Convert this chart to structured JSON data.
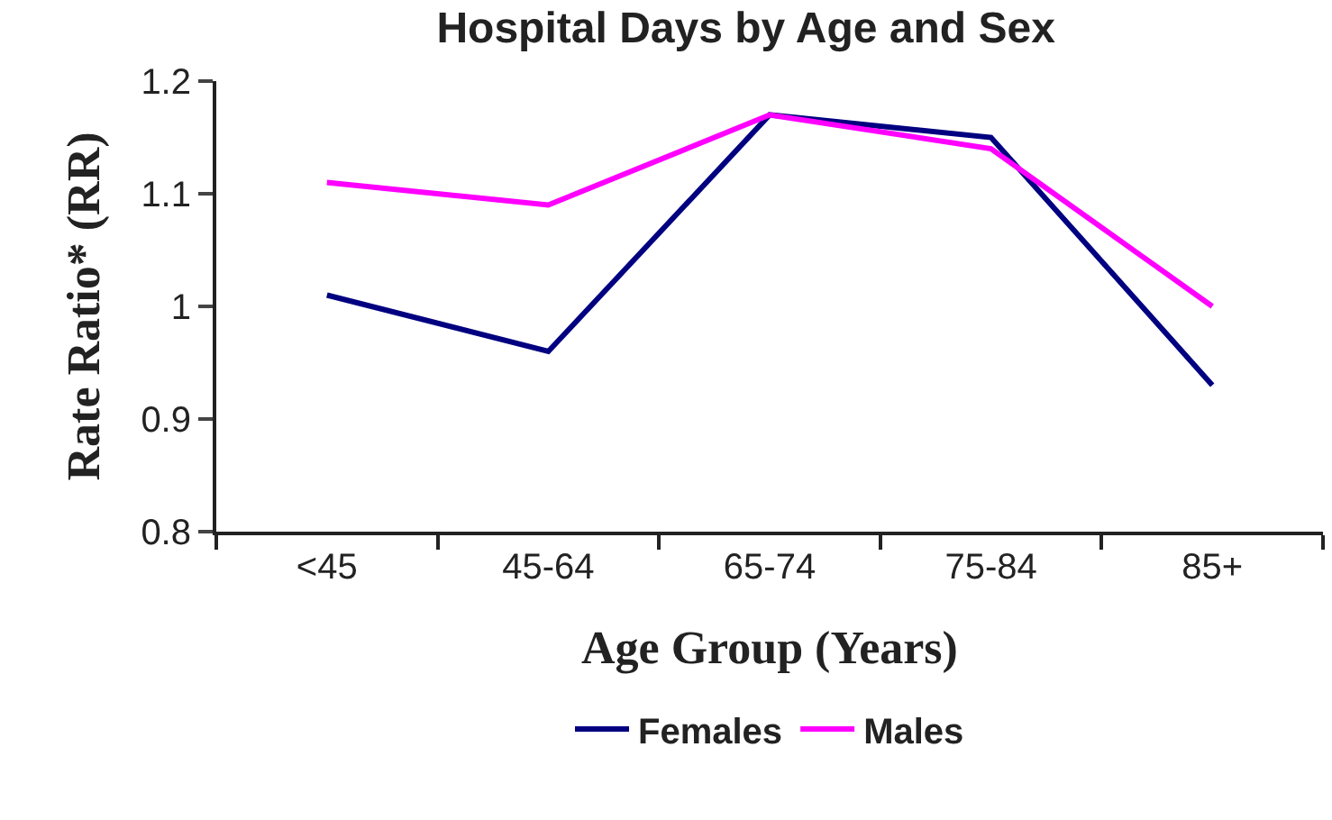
{
  "chart_data": {
    "type": "line",
    "title": "Hospital Days by Age and Sex",
    "xlabel": "Age Group (Years)",
    "ylabel": "Rate Ratio* (RR)",
    "categories": [
      "<45",
      "45-64",
      "65-74",
      "75-84",
      "85+"
    ],
    "series": [
      {
        "name": "Females",
        "color": "#000080",
        "values": [
          1.01,
          0.96,
          1.17,
          1.15,
          0.93
        ]
      },
      {
        "name": "Males",
        "color": "#ff00ff",
        "values": [
          1.11,
          1.09,
          1.17,
          1.14,
          1.0
        ]
      }
    ],
    "ylim": [
      0.8,
      1.2
    ],
    "yticks": [
      0.8,
      0.9,
      1,
      1.1,
      1.2
    ],
    "legend": "bottom",
    "marker": "none",
    "line_style": "solid"
  }
}
